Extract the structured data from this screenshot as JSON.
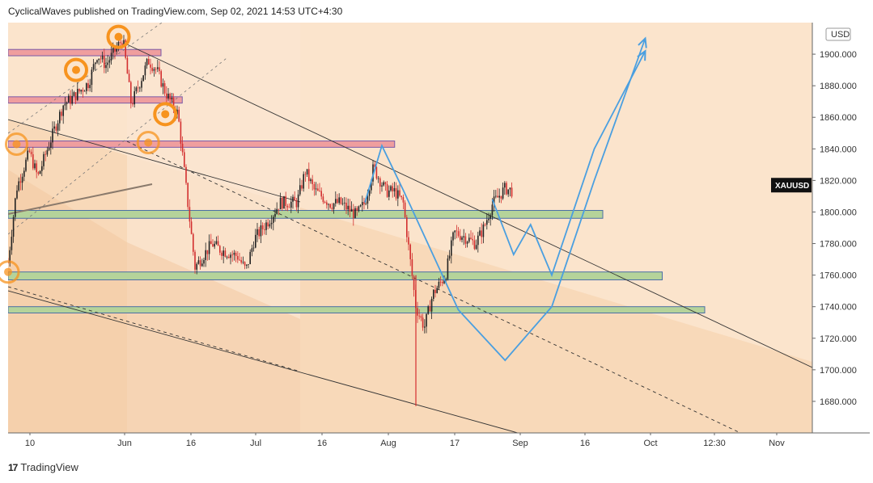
{
  "header": {
    "publisher_line": "CyclicalWaves published on TradingView.com, Sep 02, 2021 14:53 UTC+4:30"
  },
  "footer": {
    "logo_mark": "17",
    "brand": "TradingView"
  },
  "colors": {
    "background_light": "#fbe4cc",
    "background_band": "#f8d9b9",
    "background_shaded": "#f3c9a3",
    "candle_up": "#222222",
    "candle_down": "#d32f2f",
    "forecast_line": "#4a9fe0",
    "target_ring": "#f7931e",
    "support_zone": "#b5d39a",
    "resistance_zone": "#ef9e9e"
  },
  "chart_data": {
    "type": "candlestick",
    "symbol": "XAUUSD",
    "currency": "USD",
    "y_axis": {
      "ticks": [
        "1680.000",
        "1700.000",
        "1720.000",
        "1740.000",
        "1760.000",
        "1780.000",
        "1800.000",
        "1820.000",
        "1840.000",
        "1860.000",
        "1880.000",
        "1900.000"
      ],
      "range": [
        1660,
        1920
      ],
      "last_price_label": "XAUUSD",
      "last_price": 1817
    },
    "x_axis": {
      "ticks": [
        "10",
        "Jun",
        "16",
        "Jul",
        "16",
        "Aug",
        "17",
        "Sep",
        "16",
        "Oct",
        "12:30",
        "Nov"
      ]
    },
    "price_path": [
      [
        "2021-05-05",
        1768
      ],
      [
        "2021-05-07",
        1815
      ],
      [
        "2021-05-10",
        1838
      ],
      [
        "2021-05-12",
        1822
      ],
      [
        "2021-05-14",
        1838
      ],
      [
        "2021-05-18",
        1868
      ],
      [
        "2021-05-20",
        1872
      ],
      [
        "2021-05-24",
        1882
      ],
      [
        "2021-05-26",
        1900
      ],
      [
        "2021-05-28",
        1893
      ],
      [
        "2021-06-01",
        1910
      ],
      [
        "2021-06-03",
        1868
      ],
      [
        "2021-06-07",
        1896
      ],
      [
        "2021-06-09",
        1890
      ],
      [
        "2021-06-11",
        1876
      ],
      [
        "2021-06-14",
        1862
      ],
      [
        "2021-06-16",
        1813
      ],
      [
        "2021-06-18",
        1765
      ],
      [
        "2021-06-22",
        1780
      ],
      [
        "2021-06-24",
        1776
      ],
      [
        "2021-06-28",
        1772
      ],
      [
        "2021-06-30",
        1763
      ],
      [
        "2021-07-02",
        1783
      ],
      [
        "2021-07-06",
        1797
      ],
      [
        "2021-07-08",
        1806
      ],
      [
        "2021-07-12",
        1806
      ],
      [
        "2021-07-14",
        1826
      ],
      [
        "2021-07-16",
        1814
      ],
      [
        "2021-07-20",
        1805
      ],
      [
        "2021-07-22",
        1806
      ],
      [
        "2021-07-26",
        1798
      ],
      [
        "2021-07-28",
        1806
      ],
      [
        "2021-07-30",
        1828
      ],
      [
        "2021-08-02",
        1813
      ],
      [
        "2021-08-04",
        1813
      ],
      [
        "2021-08-06",
        1806
      ],
      [
        "2021-08-09",
        1740
      ],
      [
        "2021-08-11",
        1727
      ],
      [
        "2021-08-13",
        1748
      ],
      [
        "2021-08-16",
        1760
      ],
      [
        "2021-08-18",
        1787
      ],
      [
        "2021-08-20",
        1785
      ],
      [
        "2021-08-23",
        1780
      ],
      [
        "2021-08-25",
        1790
      ],
      [
        "2021-08-27",
        1805
      ],
      [
        "2021-08-30",
        1815
      ],
      [
        "2021-09-01",
        1813
      ]
    ],
    "flash_crash_low": [
      "2021-08-09",
      1677
    ],
    "forecast_path": [
      [
        "2021-07-28",
        1806
      ],
      [
        "2021-08-01",
        1842
      ],
      [
        "2021-08-06",
        1814
      ],
      [
        "2021-08-19",
        1738
      ],
      [
        "2021-08-30",
        1706
      ],
      [
        "2021-09-10",
        1740
      ],
      [
        "2021-09-20",
        1820
      ],
      [
        "2021-10-02",
        1910
      ]
    ],
    "alt_forecast_path": [
      [
        "2021-08-27",
        1808
      ],
      [
        "2021-09-01",
        1773
      ],
      [
        "2021-09-05",
        1792
      ],
      [
        "2021-09-10",
        1760
      ],
      [
        "2021-09-20",
        1840
      ],
      [
        "2021-10-02",
        1902
      ]
    ],
    "zones": [
      {
        "kind": "resistance",
        "from": "2021-05-05",
        "to": "2021-06-10",
        "y": [
          1899,
          1903
        ]
      },
      {
        "kind": "resistance",
        "from": "2021-05-05",
        "to": "2021-06-15",
        "y": [
          1869,
          1873
        ]
      },
      {
        "kind": "resistance",
        "from": "2021-05-05",
        "to": "2021-08-04",
        "y": [
          1841,
          1845
        ]
      },
      {
        "kind": "support",
        "from": "2021-05-05",
        "to": "2021-09-22",
        "y": [
          1796,
          1801
        ]
      },
      {
        "kind": "support",
        "from": "2021-05-05",
        "to": "2021-10-06",
        "y": [
          1757,
          1762
        ]
      },
      {
        "kind": "support",
        "from": "2021-05-05",
        "to": "2021-10-16",
        "y": [
          1736,
          1740
        ]
      }
    ],
    "cycle_markers": [
      [
        "2021-05-07",
        1843
      ],
      [
        "2021-05-05",
        1762
      ],
      [
        "2021-05-21",
        1890
      ],
      [
        "2021-05-31",
        1911
      ],
      [
        "2021-06-11",
        1862
      ],
      [
        "2021-06-07",
        1844
      ]
    ],
    "grid": false
  }
}
